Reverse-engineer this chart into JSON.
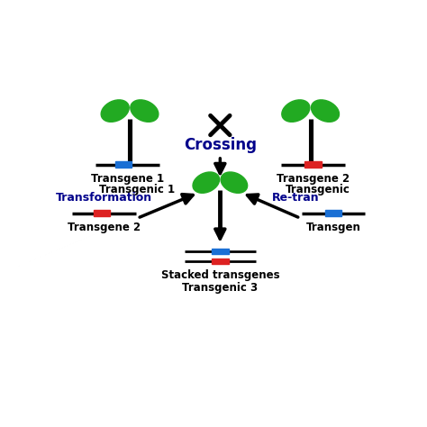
{
  "bg_color": "#ffffff",
  "green": "#22aa22",
  "blue": "#1a6fd4",
  "red": "#dd2222",
  "black": "#000000",
  "navy": "#00008B",
  "crossing_text": "Crossing",
  "stacked_text": "Stacked transgenes",
  "transgenic3_text": "Transgenic 3",
  "top_left_label1": "Transgene 1",
  "top_left_label2": "Transgenic 1",
  "top_right_label1": "Transgene 2",
  "top_right_label2": "Transgenic",
  "left_blue_label": "Transformation",
  "left_cassette_label": "Transgene 2",
  "right_blue_label": "Re-tran",
  "right_cassette_label": "Transgen",
  "figsize": [
    4.74,
    4.74
  ],
  "dpi": 100
}
